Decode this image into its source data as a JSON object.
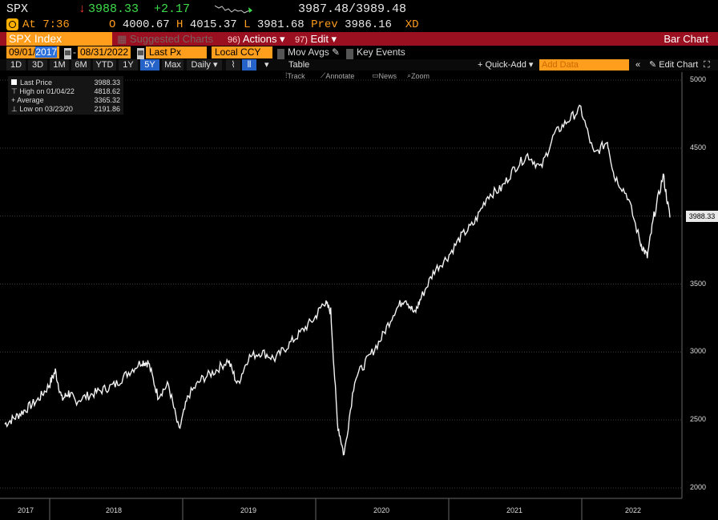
{
  "header": {
    "symbol": "SPX",
    "last": "3988.33",
    "change": "+2.17",
    "bid_ask": "3987.48/3989.48",
    "time": "At 7:36",
    "open_label": "O",
    "open": "4000.67",
    "high_label": "H",
    "high": "4015.37",
    "low_label": "L",
    "low": "3981.68",
    "prev_label": "Prev",
    "prev": "3986.16",
    "flag": "XD"
  },
  "toolbar": {
    "security": "SPX Index",
    "suggested": "Suggested Charts",
    "actions_num": "96)",
    "actions": "Actions ▾",
    "edit_num": "97)",
    "edit": "Edit ▾",
    "chart_type": "Bar Chart"
  },
  "range": {
    "start_a": "09/01/",
    "start_b": "2017",
    "end": "08/31/2022",
    "field": "Last Px",
    "currency": "Local CCY",
    "mov_avgs": "Mov Avgs",
    "key_events": "Key Events"
  },
  "periods": {
    "items": [
      "1D",
      "3D",
      "1M",
      "6M",
      "YTD",
      "1Y",
      "5Y",
      "Max"
    ],
    "active": "5Y",
    "interval": "Daily ▾",
    "table": "Table",
    "quick_add": "+ Quick-Add ▾",
    "add_data_placeholder": "Add Data",
    "edit_chart": "Edit Chart"
  },
  "tools": {
    "track": "Track",
    "annotate": "Annotate",
    "news": "News",
    "zoom": "Zoom"
  },
  "legend": {
    "last_label": "Last Price",
    "last_value": "3988.33",
    "high_label": "High on 01/04/22",
    "high_value": "4818.62",
    "avg_label": "Average",
    "avg_value": "3365.32",
    "low_label": "Low on 03/23/20",
    "low_value": "2191.86"
  },
  "colors": {
    "orange": "#ff9d1c",
    "green": "#3ddc4a",
    "red": "#ff3b3b",
    "bar_red": "#9b1020",
    "active_blue": "#2563c9"
  },
  "chart_data": {
    "type": "line",
    "ylim": [
      2000,
      5000
    ],
    "yticks": [
      2000,
      2500,
      3000,
      3500,
      4000,
      4500,
      5000
    ],
    "x_labels": [
      "2017",
      "2018",
      "2019",
      "2020",
      "2021",
      "2022"
    ],
    "last_value_label": "3988.33",
    "series": [
      {
        "x": [
          2017.67,
          2017.75,
          2017.83,
          2017.92,
          2018.0,
          2018.05,
          2018.1,
          2018.15,
          2018.2,
          2018.3,
          2018.4,
          2018.5,
          2018.6,
          2018.7,
          2018.75,
          2018.82,
          2018.9,
          2018.98,
          2019.05,
          2019.15,
          2019.25,
          2019.35,
          2019.42,
          2019.5,
          2019.6,
          2019.7,
          2019.8,
          2019.9,
          2020.0,
          2020.07,
          2020.12,
          2020.17,
          2020.22,
          2020.3,
          2020.4,
          2020.5,
          2020.6,
          2020.68,
          2020.75,
          2020.8,
          2020.9,
          2021.0,
          2021.1,
          2021.2,
          2021.3,
          2021.4,
          2021.5,
          2021.6,
          2021.7,
          2021.8,
          2021.9,
          2022.0,
          2022.1,
          2022.2,
          2022.25,
          2022.35,
          2022.45,
          2022.5,
          2022.55,
          2022.62,
          2022.67
        ],
        "y": [
          2470,
          2520,
          2580,
          2650,
          2750,
          2860,
          2650,
          2700,
          2640,
          2680,
          2720,
          2760,
          2850,
          2930,
          2920,
          2680,
          2760,
          2420,
          2680,
          2800,
          2860,
          2940,
          2760,
          2960,
          3000,
          2950,
          3050,
          3150,
          3250,
          3370,
          3300,
          2480,
          2240,
          2800,
          2950,
          3100,
          3300,
          3400,
          3280,
          3400,
          3600,
          3700,
          3850,
          3950,
          4150,
          4200,
          4350,
          4450,
          4350,
          4600,
          4700,
          4790,
          4450,
          4550,
          4300,
          4150,
          3800,
          3700,
          4000,
          4300,
          3990
        ]
      }
    ]
  }
}
